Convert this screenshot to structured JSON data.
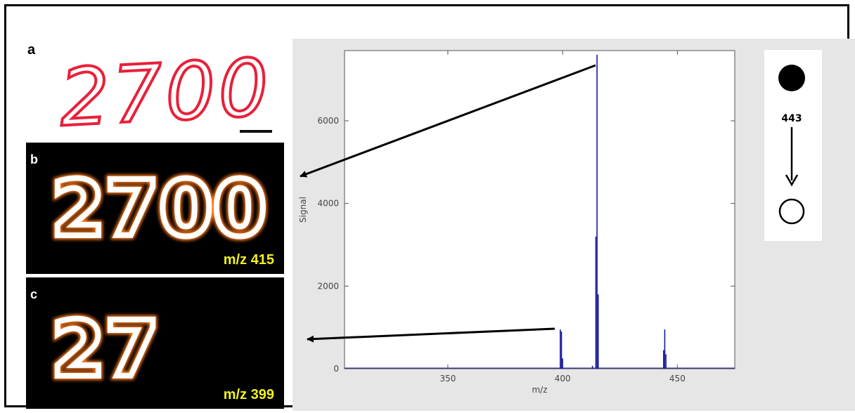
{
  "panels": {
    "a": {
      "letter": "a",
      "text": "2700"
    },
    "b": {
      "letter": "b",
      "text": "2700",
      "mz_label": "m/z 415"
    },
    "c": {
      "letter": "c",
      "text": "27",
      "mz_label": "m/z 399"
    }
  },
  "scheme": {
    "label": "443"
  },
  "colors": {
    "spectrum_line": "#1a1a9a",
    "ink_red": "#e8203a",
    "mz_label": "#f2f21a",
    "panel_bg": "#000000"
  },
  "chart_data": {
    "type": "line",
    "xlabel": "m/z",
    "ylabel": "Signal",
    "xlim": [
      305,
      475
    ],
    "ylim": [
      0,
      7700
    ],
    "xticks": [
      350,
      400,
      450
    ],
    "yticks": [
      0,
      2000,
      4000,
      6000
    ],
    "peaks": [
      {
        "x": 399,
        "y": 950
      },
      {
        "x": 399.5,
        "y": 900
      },
      {
        "x": 400,
        "y": 250
      },
      {
        "x": 413,
        "y": 70
      },
      {
        "x": 414.5,
        "y": 3200
      },
      {
        "x": 415,
        "y": 7600
      },
      {
        "x": 415.5,
        "y": 1800
      },
      {
        "x": 444,
        "y": 450
      },
      {
        "x": 444.5,
        "y": 950
      },
      {
        "x": 445,
        "y": 350
      }
    ]
  }
}
